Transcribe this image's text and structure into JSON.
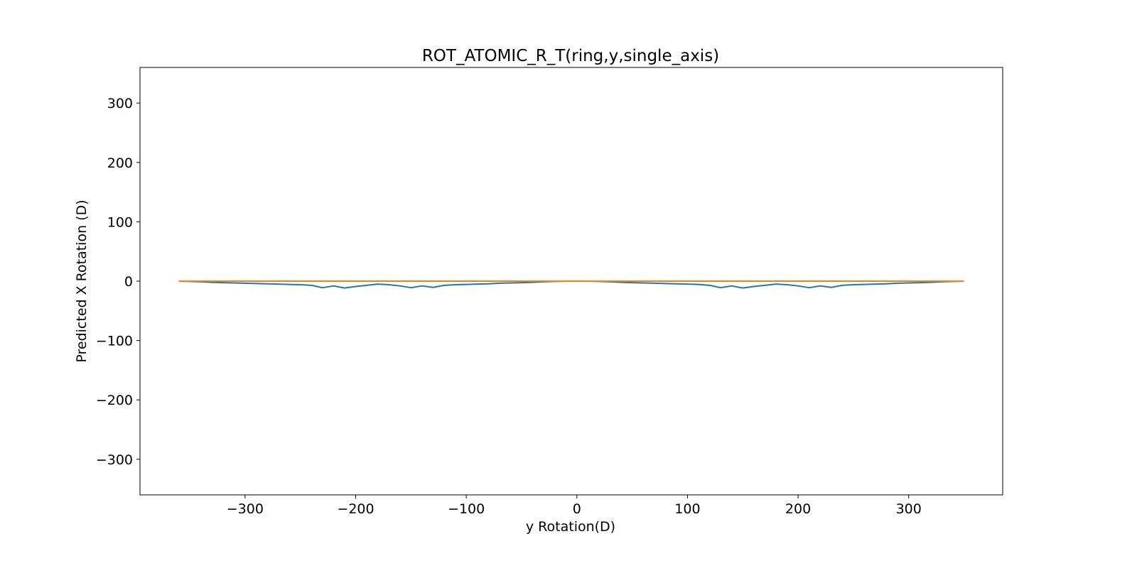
{
  "chart_data": {
    "type": "line",
    "title": "ROT_ATOMIC_R_T(ring,y,single_axis)",
    "xlabel": "y Rotation(D)",
    "ylabel": "Predicted X Rotation (D)",
    "xlim": [
      -395,
      385
    ],
    "ylim": [
      -360,
      360
    ],
    "xticks": [
      -300,
      -200,
      -100,
      0,
      100,
      200,
      300
    ],
    "xtick_labels": [
      "−300",
      "−200",
      "−100",
      "0",
      "100",
      "200",
      "300"
    ],
    "yticks": [
      -300,
      -200,
      -100,
      0,
      100,
      200,
      300
    ],
    "ytick_labels": [
      "−300",
      "−200",
      "−100",
      "0",
      "100",
      "200",
      "300"
    ],
    "grid": false,
    "legend": "none",
    "series": [
      {
        "color": "#1f77b4",
        "x": [
          -360,
          -350,
          -340,
          -330,
          -320,
          -310,
          -300,
          -290,
          -280,
          -270,
          -260,
          -250,
          -240,
          -230,
          -220,
          -210,
          -200,
          -190,
          -180,
          -170,
          -160,
          -150,
          -140,
          -130,
          -120,
          -110,
          -100,
          -90,
          -80,
          -70,
          -60,
          -50,
          -40,
          -30,
          -20,
          -10,
          0,
          10,
          20,
          30,
          40,
          50,
          60,
          70,
          80,
          90,
          100,
          110,
          120,
          130,
          140,
          150,
          160,
          170,
          180,
          190,
          200,
          210,
          220,
          230,
          240,
          250,
          260,
          270,
          280,
          290,
          300,
          310,
          320,
          330,
          340,
          350
        ],
        "y": [
          0,
          -0.5,
          -1,
          -2,
          -2.5,
          -3,
          -3.5,
          -4,
          -4.5,
          -5,
          -5.5,
          -6,
          -7,
          -11,
          -8,
          -11.5,
          -9,
          -7,
          -5,
          -6,
          -8,
          -11,
          -8,
          -10.5,
          -7,
          -6,
          -5.5,
          -5,
          -4.5,
          -3.5,
          -3,
          -2.5,
          -2,
          -1,
          -0.5,
          0,
          0,
          0,
          -0.5,
          -1,
          -2,
          -2.5,
          -3,
          -3.5,
          -4,
          -4.5,
          -5,
          -5.5,
          -7,
          -11,
          -8,
          -11.5,
          -9,
          -7,
          -5,
          -6,
          -8,
          -11,
          -8,
          -10.5,
          -7,
          -6,
          -5.5,
          -5,
          -4.5,
          -3.5,
          -3,
          -2.5,
          -2,
          -1,
          -0.5,
          0
        ]
      },
      {
        "color": "#ff7f0e",
        "x": [
          -360,
          350
        ],
        "y": [
          0,
          0
        ]
      }
    ]
  }
}
